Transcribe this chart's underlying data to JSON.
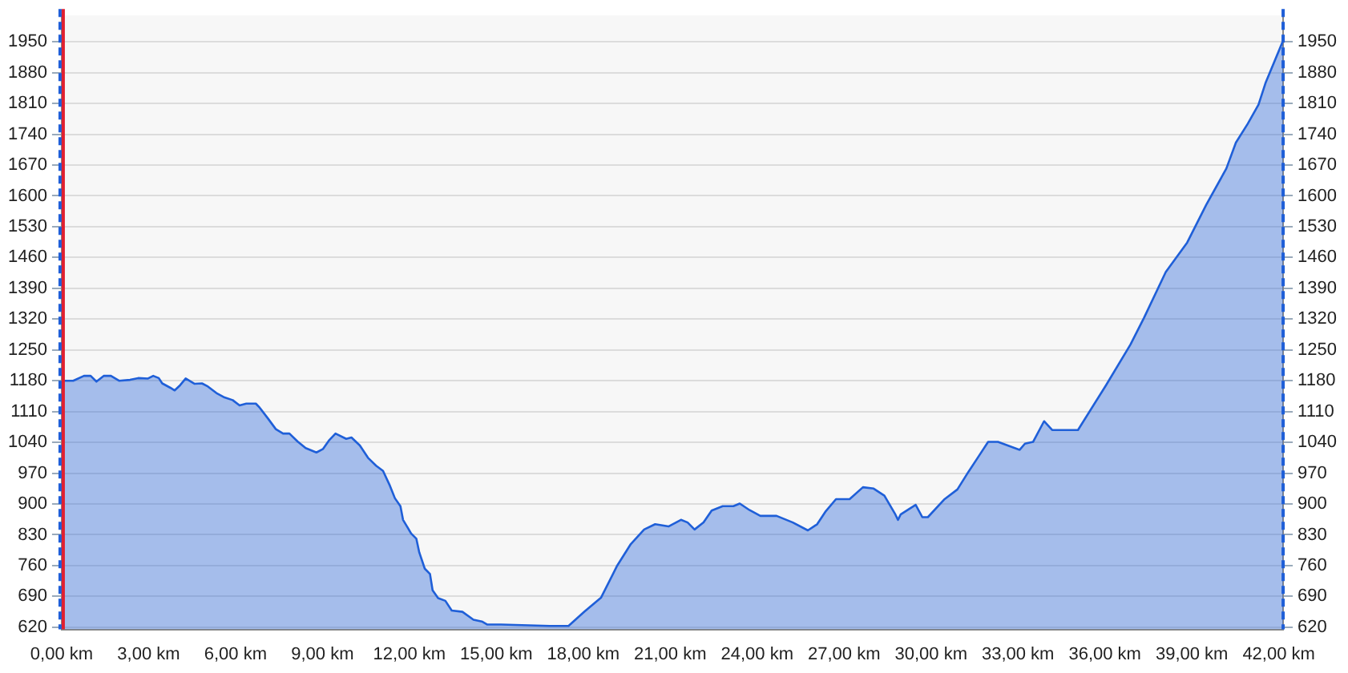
{
  "chart_data": {
    "type": "area",
    "x": [
      0,
      0.4,
      0.77,
      1.0,
      1.2,
      1.45,
      1.7,
      1.98,
      2.36,
      2.64,
      2.98,
      3.16,
      3.35,
      3.47,
      3.75,
      3.9,
      4.09,
      4.28,
      4.59,
      4.84,
      5.02,
      5.34,
      5.62,
      5.9,
      6.14,
      6.37,
      6.7,
      6.83,
      7.11,
      7.39,
      7.64,
      7.86,
      8.14,
      8.42,
      8.79,
      9.02,
      9.22,
      9.45,
      9.82,
      10.0,
      10.29,
      10.57,
      10.85,
      11.09,
      11.31,
      11.5,
      11.69,
      11.78,
      12.06,
      12.24,
      12.34,
      12.53,
      12.71,
      12.8,
      12.99,
      13.24,
      13.46,
      13.83,
      14.21,
      14.5,
      14.69,
      15.16,
      16.84,
      17.49,
      18.05,
      18.61,
      19.17,
      19.64,
      20.1,
      20.48,
      20.94,
      21.37,
      21.6,
      21.84,
      22.15,
      22.43,
      22.81,
      23.18,
      23.4,
      23.74,
      24.11,
      24.67,
      25.23,
      25.75,
      26.07,
      26.35,
      26.72,
      27.19,
      27.65,
      28.02,
      28.39,
      28.77,
      28.86,
      28.95,
      29.23,
      29.47,
      29.7,
      29.89,
      30.45,
      30.91,
      31.29,
      31.66,
      31.97,
      32.31,
      33.06,
      33.24,
      33.52,
      33.9,
      34.18,
      35.07,
      36.04,
      36.88,
      37.35,
      38.1,
      38.84,
      39.5,
      40.19,
      40.52,
      40.93,
      41.3,
      41.54,
      42.15
    ],
    "series": [
      {
        "color": "#1f5fd8",
        "values": [
          1180,
          1180,
          1191,
          1191,
          1178,
          1191,
          1191,
          1180,
          1182,
          1186,
          1185,
          1191,
          1186,
          1174,
          1164,
          1158,
          1170,
          1185,
          1173,
          1174,
          1168,
          1152,
          1142,
          1136,
          1124,
          1128,
          1128,
          1119,
          1095,
          1070,
          1060,
          1060,
          1042,
          1027,
          1017,
          1025,
          1044,
          1060,
          1048,
          1051,
          1033,
          1005,
          987,
          975,
          944,
          913,
          895,
          864,
          833,
          821,
          790,
          753,
          741,
          704,
          686,
          680,
          658,
          655,
          637,
          633,
          626,
          626,
          623,
          623,
          656,
          687,
          760,
          809,
          842,
          854,
          849,
          864,
          858,
          842,
          858,
          885,
          895,
          895,
          901,
          886,
          873,
          873,
          858,
          840,
          854,
          882,
          911,
          911,
          938,
          935,
          919,
          876,
          864,
          876,
          888,
          898,
          870,
          870,
          910,
          933,
          973,
          1010,
          1041,
          1041,
          1023,
          1037,
          1041,
          1088,
          1068,
          1068,
          1170,
          1262,
          1323,
          1427,
          1494,
          1580,
          1662,
          1721,
          1764,
          1807,
          1856,
          1953
        ]
      }
    ],
    "xlim": [
      0,
      42.15
    ],
    "xticks": [
      {
        "value": 0,
        "label": "0,00 km"
      },
      {
        "value": 3,
        "label": "3,00 km"
      },
      {
        "value": 6,
        "label": "6,00 km"
      },
      {
        "value": 9,
        "label": "9,00 km"
      },
      {
        "value": 12,
        "label": "12,00 km"
      },
      {
        "value": 15,
        "label": "15,00 km"
      },
      {
        "value": 18,
        "label": "18,00 km"
      },
      {
        "value": 21,
        "label": "21,00 km"
      },
      {
        "value": 24,
        "label": "24,00 km"
      },
      {
        "value": 27,
        "label": "27,00 km"
      },
      {
        "value": 30,
        "label": "30,00 km"
      },
      {
        "value": 33,
        "label": "33,00 km"
      },
      {
        "value": 36,
        "label": "36,00 km"
      },
      {
        "value": 39,
        "label": "39,00 km"
      },
      {
        "value": 42,
        "label": "42,00 km"
      }
    ],
    "ylim": [
      615,
      2010
    ],
    "yticks": [
      620,
      690,
      760,
      830,
      900,
      970,
      1040,
      1110,
      1180,
      1250,
      1320,
      1390,
      1460,
      1530,
      1600,
      1670,
      1740,
      1810,
      1880,
      1950
    ],
    "y2lim": [
      615,
      2010
    ],
    "y2ticks": [
      620,
      690,
      760,
      830,
      900,
      970,
      1040,
      1110,
      1180,
      1250,
      1320,
      1390,
      1460,
      1530,
      1600,
      1670,
      1740,
      1810,
      1880,
      1950
    ],
    "ref_lines": [
      {
        "axis": "x",
        "value": 0,
        "color": "#1f5fd8",
        "line_style": "dashed"
      },
      {
        "axis": "x",
        "value": 0,
        "color": "#e02030",
        "line_style": "solid"
      },
      {
        "axis": "x",
        "value": 42.15,
        "color": "#1f5fd8",
        "line_style": "dashed"
      }
    ],
    "grid": "y",
    "legend": false,
    "marker": "none",
    "line_style": "solid"
  }
}
